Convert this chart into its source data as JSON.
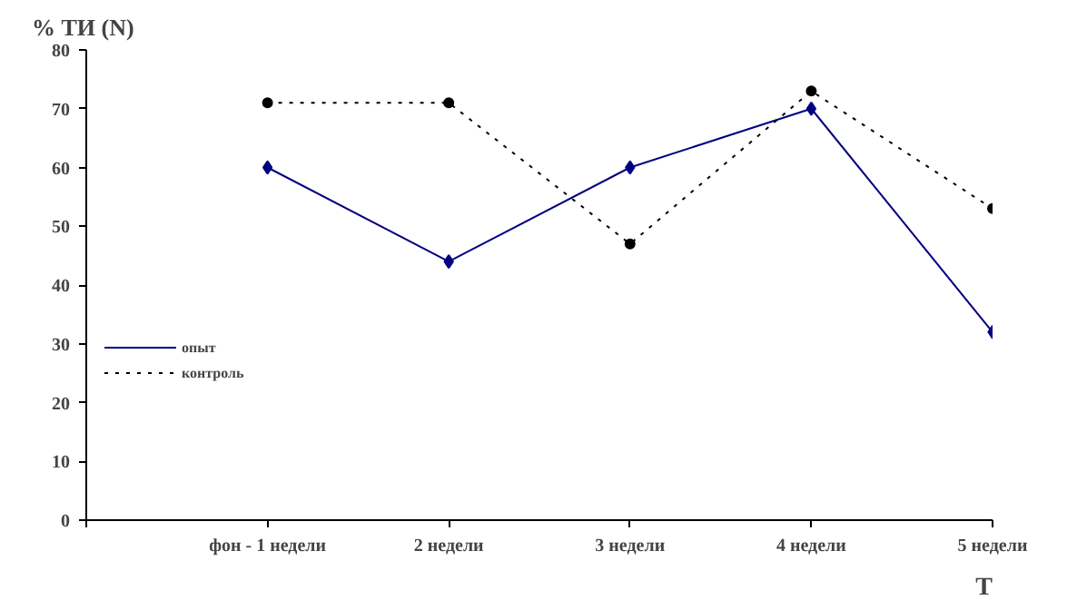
{
  "chart_data": {
    "type": "line",
    "ylabel": "% ТИ (N)",
    "xlabel": "Т",
    "categories": [
      null,
      "фон - 1 недели",
      "2 недели",
      "3 недели",
      "4 недели",
      "5 недели"
    ],
    "series": [
      {
        "name": "опыт",
        "color": "#000080",
        "values": [
          null,
          60,
          44,
          60,
          70,
          32
        ],
        "marker": "diamond",
        "line_style": "solid"
      },
      {
        "name": "контроль",
        "color": "#000000",
        "values": [
          null,
          71,
          71,
          47,
          73,
          53
        ],
        "marker": "circle",
        "line_style": "dotted"
      }
    ],
    "ylim": [
      0,
      80
    ],
    "yticks": [
      0,
      10,
      20,
      30,
      40,
      50,
      60,
      70,
      80
    ],
    "grid": false,
    "legend": "left"
  }
}
